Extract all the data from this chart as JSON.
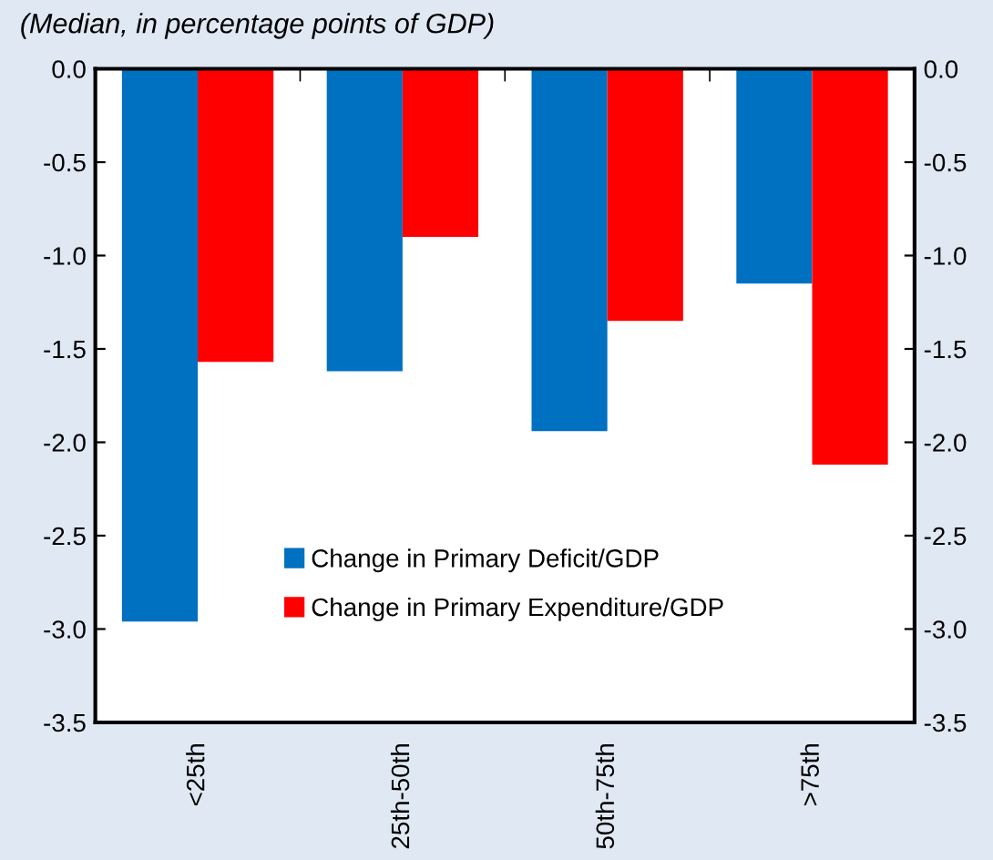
{
  "chart_data": {
    "type": "bar",
    "subtitle": "(Median, in percentage points of GDP)",
    "categories": [
      "<25th",
      "25th-50th",
      "50th-75th",
      ">75th"
    ],
    "series": [
      {
        "name": "Change in Primary Deficit/GDP",
        "color": "#0070c0",
        "values": [
          -2.96,
          -1.62,
          -1.94,
          -1.15
        ]
      },
      {
        "name": "Change in Primary Expenditure/GDP",
        "color": "#ff0000",
        "values": [
          -1.57,
          -0.9,
          -1.35,
          -2.12
        ]
      }
    ],
    "ylim": [
      -3.5,
      0.0
    ],
    "yticks": [
      {
        "value": 0.0,
        "label": "0.0"
      },
      {
        "value": -0.5,
        "label": "-0.5"
      },
      {
        "value": -1.0,
        "label": "-1.0"
      },
      {
        "value": -1.5,
        "label": "-1.5"
      },
      {
        "value": -2.0,
        "label": "-2.0"
      },
      {
        "value": -2.5,
        "label": "-2.5"
      },
      {
        "value": -3.0,
        "label": "-3.0"
      },
      {
        "value": -3.5,
        "label": "-3.5"
      }
    ],
    "y2lim": [
      -3.5,
      0.0
    ],
    "y2ticks": [
      {
        "value": 0.0,
        "label": "0.0"
      },
      {
        "value": -0.5,
        "label": "-0.5"
      },
      {
        "value": -1.0,
        "label": "-1.0"
      },
      {
        "value": -1.5,
        "label": "-1.5"
      },
      {
        "value": -2.0,
        "label": "-2.0"
      },
      {
        "value": -2.5,
        "label": "-2.5"
      },
      {
        "value": -3.0,
        "label": "-3.0"
      },
      {
        "value": -3.5,
        "label": "-3.5"
      }
    ],
    "grid": false,
    "legend": "bottom"
  }
}
